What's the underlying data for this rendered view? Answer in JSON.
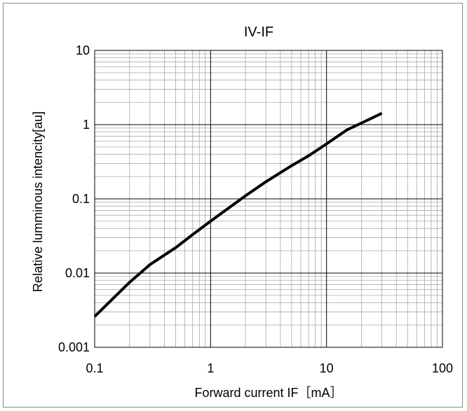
{
  "chart_data": {
    "type": "line",
    "title": "IV-IF",
    "xlabel": "Forward current IF［mA］",
    "ylabel": "Relative lumminous intencity[au]",
    "x_scale": "log",
    "y_scale": "log",
    "xlim": [
      0.1,
      100
    ],
    "ylim": [
      0.001,
      10
    ],
    "x_ticks": [
      "0.1",
      "1",
      "10",
      "100"
    ],
    "y_ticks": [
      "10",
      "1",
      "0.1",
      "0.01",
      "0.001"
    ],
    "grid": true,
    "legend": "none",
    "series": [
      {
        "color": "#000000",
        "x": [
          0.1,
          0.2,
          0.3,
          0.5,
          0.7,
          1,
          2,
          3,
          5,
          7,
          10,
          15,
          20,
          30
        ],
        "y": [
          0.0026,
          0.0075,
          0.013,
          0.022,
          0.033,
          0.05,
          0.11,
          0.17,
          0.28,
          0.38,
          0.55,
          0.85,
          1.05,
          1.42
        ]
      }
    ]
  }
}
